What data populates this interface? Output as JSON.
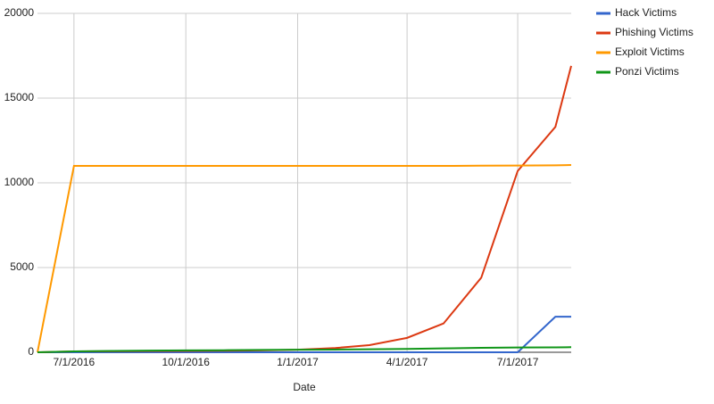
{
  "chart_data": {
    "type": "line",
    "x_label": "Date",
    "x": [
      "2016-06-01",
      "2016-07-01",
      "2016-08-01",
      "2016-09-01",
      "2016-10-01",
      "2016-11-01",
      "2016-12-01",
      "2017-01-01",
      "2017-02-01",
      "2017-03-01",
      "2017-04-01",
      "2017-05-01",
      "2017-06-01",
      "2017-07-01",
      "2017-08-01",
      "2017-08-14"
    ],
    "series": [
      {
        "name": "Hack Victims",
        "color": "#3366cc",
        "values": [
          0,
          0,
          0,
          0,
          0,
          0,
          0,
          0,
          0,
          0,
          0,
          0,
          0,
          0,
          2100,
          2100
        ]
      },
      {
        "name": "Phishing Victims",
        "color": "#dc3912",
        "values": [
          0,
          50,
          60,
          70,
          80,
          90,
          110,
          150,
          250,
          420,
          850,
          1700,
          4400,
          10700,
          13300,
          16900
        ]
      },
      {
        "name": "Exploit Victims",
        "color": "#ff9900",
        "values": [
          0,
          11000,
          11000,
          11000,
          11000,
          11000,
          11000,
          11000,
          11000,
          11000,
          11000,
          11000,
          11010,
          11020,
          11030,
          11050
        ]
      },
      {
        "name": "Ponzi Victims",
        "color": "#109618",
        "values": [
          0,
          50,
          80,
          100,
          110,
          120,
          140,
          150,
          160,
          180,
          200,
          230,
          260,
          280,
          290,
          300
        ]
      }
    ],
    "xlim": [
      "2016-06-01",
      "2017-08-14"
    ],
    "xticks": [
      {
        "value": "2016-07-01",
        "label": "7/1/2016"
      },
      {
        "value": "2016-10-01",
        "label": "10/1/2016"
      },
      {
        "value": "2017-01-01",
        "label": "1/1/2017"
      },
      {
        "value": "2017-04-01",
        "label": "4/1/2017"
      },
      {
        "value": "2017-07-01",
        "label": "7/1/2017"
      }
    ],
    "ylim": [
      0,
      20000
    ],
    "yticks": [
      0,
      5000,
      10000,
      15000,
      20000
    ],
    "grid": true,
    "legend": "right"
  }
}
